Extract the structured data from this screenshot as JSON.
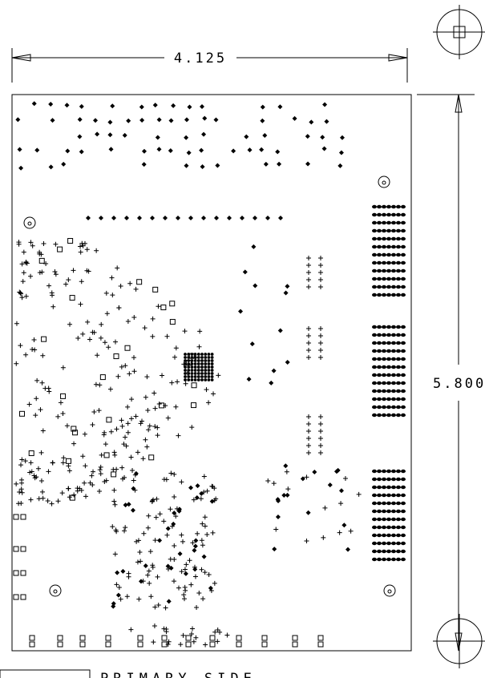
{
  "dimensions": {
    "width": "4.125",
    "height": "5.800"
  },
  "footer": {
    "label": "PRIMARY SIDE"
  }
}
